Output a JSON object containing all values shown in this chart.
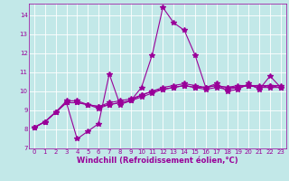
{
  "xlabel": "Windchill (Refroidissement éolien,°C)",
  "bg_color": "#c2e8e8",
  "grid_color": "#b0d8d8",
  "line_color": "#990099",
  "ylim": [
    7,
    14.6
  ],
  "xlim": [
    -0.5,
    23.5
  ],
  "yticks": [
    7,
    8,
    9,
    10,
    11,
    12,
    13,
    14
  ],
  "xticks": [
    0,
    1,
    2,
    3,
    4,
    5,
    6,
    7,
    8,
    9,
    10,
    11,
    12,
    13,
    14,
    15,
    16,
    17,
    18,
    19,
    20,
    21,
    22,
    23
  ],
  "series1_x": [
    0,
    1,
    2,
    3,
    4,
    5,
    6,
    7,
    8,
    9,
    10,
    11,
    12,
    13,
    14,
    15,
    16,
    17,
    18,
    19,
    20,
    21,
    22,
    23
  ],
  "series1_y": [
    8.1,
    8.4,
    8.9,
    9.4,
    7.5,
    7.9,
    8.3,
    10.9,
    9.3,
    9.5,
    10.2,
    11.9,
    14.4,
    13.6,
    13.2,
    11.9,
    10.2,
    10.4,
    10.0,
    10.1,
    10.4,
    10.1,
    10.8,
    10.2
  ],
  "series2_x": [
    0,
    1,
    2,
    3,
    4,
    5,
    6,
    7,
    8,
    9,
    10,
    11,
    12,
    13,
    14,
    15,
    16,
    17,
    18,
    19,
    20,
    21,
    22,
    23
  ],
  "series2_y": [
    8.1,
    8.4,
    8.9,
    9.5,
    9.5,
    9.3,
    9.1,
    9.3,
    9.4,
    9.5,
    9.7,
    9.9,
    10.1,
    10.2,
    10.3,
    10.2,
    10.1,
    10.2,
    10.1,
    10.2,
    10.3,
    10.2,
    10.3,
    10.2
  ],
  "series3_x": [
    0,
    1,
    2,
    3,
    4,
    5,
    6,
    7,
    8,
    9,
    10,
    11,
    12,
    13,
    14,
    15,
    16,
    17,
    18,
    19,
    20,
    21,
    22,
    23
  ],
  "series3_y": [
    8.1,
    8.4,
    8.9,
    9.4,
    9.4,
    9.3,
    9.2,
    9.4,
    9.5,
    9.6,
    9.8,
    10.0,
    10.1,
    10.2,
    10.3,
    10.2,
    10.2,
    10.3,
    10.2,
    10.2,
    10.3,
    10.2,
    10.2,
    10.2
  ],
  "series4_x": [
    0,
    1,
    2,
    3,
    4,
    5,
    6,
    7,
    8,
    9,
    10,
    11,
    12,
    13,
    14,
    15,
    16,
    17,
    18,
    19,
    20,
    21,
    22,
    23
  ],
  "series4_y": [
    8.1,
    8.4,
    8.9,
    9.4,
    9.4,
    9.3,
    9.2,
    9.3,
    9.4,
    9.5,
    9.8,
    10.0,
    10.2,
    10.3,
    10.4,
    10.3,
    10.2,
    10.3,
    10.2,
    10.3,
    10.3,
    10.3,
    10.3,
    10.3
  ],
  "marker": "*",
  "markersize": 4,
  "linewidth": 0.8,
  "tick_fontsize": 5,
  "xlabel_fontsize": 6
}
